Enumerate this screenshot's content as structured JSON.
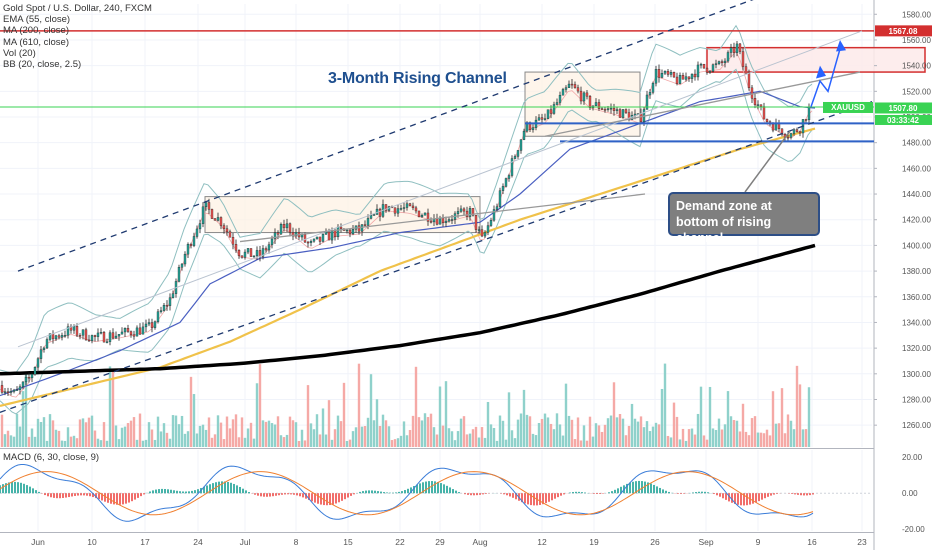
{
  "header": {
    "symbol_line": "Gold Spot / U.S. Dollar, 240, FXCM",
    "indicators": [
      "EMA (55, close)",
      "MA (200, close)",
      "MA (610, close)",
      "Vol (20)",
      "BB (20, close, 2.5)"
    ],
    "macd_label": "MACD (6, 30, close, 9)"
  },
  "annotations": {
    "title": "3-Month Rising Channel",
    "callout": [
      "Demand zone at",
      "bottom of rising channel"
    ]
  },
  "price_tags": {
    "resistance": "1567.08",
    "symbol": "XAUUSD",
    "last": "1507.80",
    "countdown": "03:33:42"
  },
  "colors": {
    "up": "#26a69a",
    "down": "#ef5350",
    "ema55": "#4a5fc1",
    "ma200": "#f0c24a",
    "ma610": "#000000",
    "bb": "#8fbfc0",
    "channel": "#1f3a70",
    "resistance_line": "#d32f2f",
    "support_line": "#2f62c6",
    "green_line": "#39d353",
    "macd": "#3b7dd8",
    "signal": "#f08030",
    "callout_bg": "#7f7f7f"
  },
  "chart_data": [
    {
      "type": "candlestick",
      "x_axis": [
        "Jun",
        "10",
        "17",
        "24",
        "Jul",
        "8",
        "15",
        "22",
        "29",
        "Aug",
        "12",
        "19",
        "26",
        "Sep",
        "9",
        "16",
        "23"
      ],
      "y_ticks": [
        1260,
        1280,
        1300,
        1320,
        1340,
        1360,
        1380,
        1400,
        1420,
        1440,
        1460,
        1480,
        1500,
        1520,
        1540,
        1560,
        1580
      ],
      "ylim": [
        1243,
        1588
      ],
      "close_path": [
        [
          0,
          1291
        ],
        [
          15,
          1284
        ],
        [
          30,
          1297
        ],
        [
          45,
          1326
        ],
        [
          70,
          1334
        ],
        [
          95,
          1328
        ],
        [
          120,
          1331
        ],
        [
          150,
          1336
        ],
        [
          170,
          1358
        ],
        [
          185,
          1393
        ],
        [
          205,
          1430
        ],
        [
          222,
          1418
        ],
        [
          240,
          1394
        ],
        [
          260,
          1392
        ],
        [
          285,
          1416
        ],
        [
          310,
          1400
        ],
        [
          335,
          1410
        ],
        [
          360,
          1412
        ],
        [
          385,
          1430
        ],
        [
          410,
          1428
        ],
        [
          440,
          1420
        ],
        [
          470,
          1426
        ],
        [
          482,
          1404
        ],
        [
          495,
          1428
        ],
        [
          510,
          1460
        ],
        [
          525,
          1492
        ],
        [
          545,
          1498
        ],
        [
          570,
          1525
        ],
        [
          590,
          1510
        ],
        [
          615,
          1505
        ],
        [
          640,
          1498
        ],
        [
          655,
          1535
        ],
        [
          680,
          1528
        ],
        [
          700,
          1538
        ],
        [
          720,
          1540
        ],
        [
          737,
          1555
        ],
        [
          750,
          1522
        ],
        [
          765,
          1498
        ],
        [
          790,
          1486
        ],
        [
          800,
          1492
        ],
        [
          810,
          1507.8
        ]
      ],
      "series": [
        {
          "name": "EMA (55, close)",
          "values": [
            [
              0,
              1283
            ],
            [
              60,
              1300
            ],
            [
              120,
              1318
            ],
            [
              180,
              1340
            ],
            [
              210,
              1370
            ],
            [
              260,
              1390
            ],
            [
              330,
              1398
            ],
            [
              400,
              1410
            ],
            [
              480,
              1418
            ],
            [
              520,
              1440
            ],
            [
              570,
              1475
            ],
            [
              640,
              1495
            ],
            [
              700,
              1512
            ],
            [
              760,
              1520
            ],
            [
              800,
              1508
            ],
            [
              815,
              1507
            ]
          ]
        },
        {
          "name": "MA (200, close)",
          "values": [
            [
              0,
              1275
            ],
            [
              80,
              1290
            ],
            [
              160,
              1305
            ],
            [
              230,
              1325
            ],
            [
              300,
              1350
            ],
            [
              380,
              1380
            ],
            [
              450,
              1400
            ],
            [
              520,
              1420
            ],
            [
              600,
              1440
            ],
            [
              680,
              1460
            ],
            [
              740,
              1475
            ],
            [
              815,
              1491
            ]
          ]
        },
        {
          "name": "MA (610, close)",
          "values": [
            [
              0,
              1300
            ],
            [
              80,
              1302
            ],
            [
              160,
              1304
            ],
            [
              240,
              1308
            ],
            [
              320,
              1314
            ],
            [
              400,
              1322
            ],
            [
              480,
              1332
            ],
            [
              560,
              1346
            ],
            [
              640,
              1362
            ],
            [
              720,
              1380
            ],
            [
              815,
              1400
            ]
          ]
        }
      ],
      "levels": {
        "resistance": 1567.08,
        "green": 1507.8,
        "blue_upper": 1495,
        "blue_lower": 1481
      },
      "zones": [
        {
          "x_from": 205,
          "x_to": 480,
          "low": 1410,
          "high": 1438
        },
        {
          "x_from": 525,
          "x_to": 640,
          "low": 1485,
          "high": 1535
        },
        {
          "x_from": 707,
          "x_to": 925,
          "low": 1535,
          "high": 1554
        }
      ]
    },
    {
      "type": "bar",
      "name": "Vol (20)"
    },
    {
      "type": "line",
      "name": "MACD (6, 30, close, 9)",
      "y_ticks": [
        20,
        0,
        -20
      ],
      "ylim": [
        -21,
        24
      ]
    }
  ]
}
